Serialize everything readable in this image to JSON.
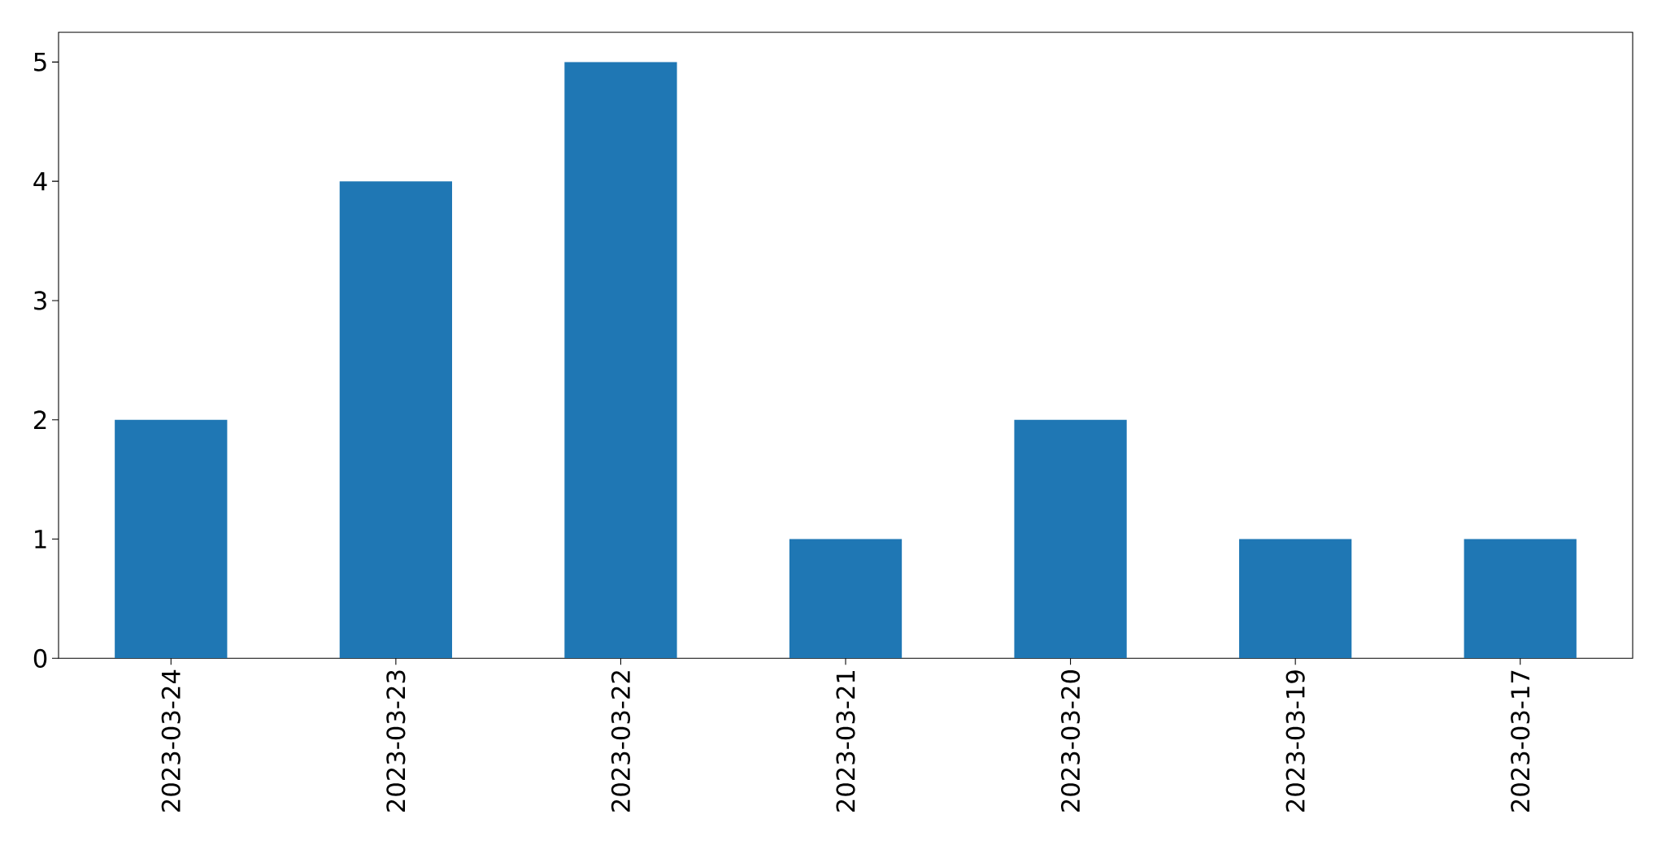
{
  "chart_data": {
    "type": "bar",
    "categories": [
      "2023-03-24",
      "2023-03-23",
      "2023-03-22",
      "2023-03-21",
      "2023-03-20",
      "2023-03-19",
      "2023-03-17"
    ],
    "values": [
      2,
      4,
      5,
      1,
      2,
      1,
      1
    ],
    "color": "#1f77b4",
    "ylim": [
      0,
      5.25
    ],
    "yticks": [
      0,
      1,
      2,
      3,
      4,
      5
    ]
  }
}
